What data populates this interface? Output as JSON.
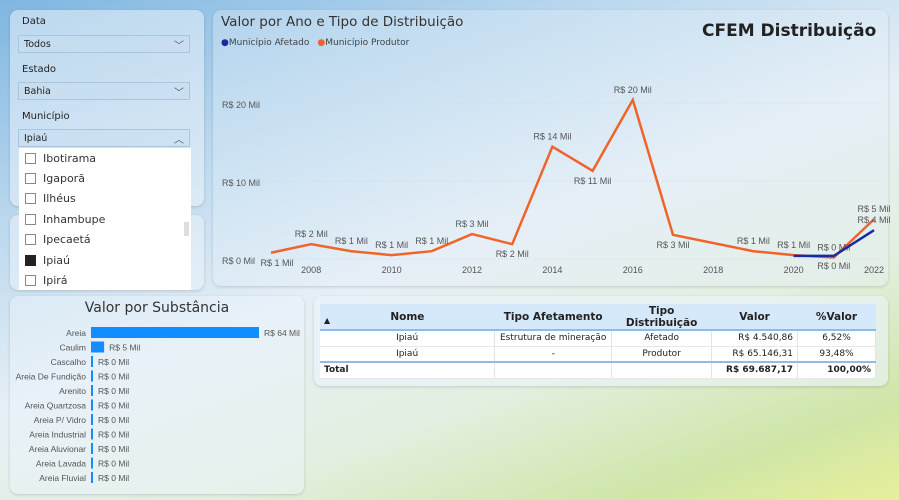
{
  "filters": {
    "data": {
      "label": "Data",
      "value": "Todos"
    },
    "estado": {
      "label": "Estado",
      "value": "Bahia"
    },
    "municipio": {
      "label": "Município",
      "value": "Ipiaú",
      "options": [
        {
          "name": "Ibotirama",
          "checked": false
        },
        {
          "name": "Igaporã",
          "checked": false
        },
        {
          "name": "Ilhéus",
          "checked": false
        },
        {
          "name": "Inhambupe",
          "checked": false
        },
        {
          "name": "Ipecaetá",
          "checked": false
        },
        {
          "name": "Ipiaú",
          "checked": true
        },
        {
          "name": "Ipirá",
          "checked": false
        }
      ]
    }
  },
  "report_title": "CFEM Distribuição",
  "colors": {
    "afetado": "#1a2aa0",
    "produtor": "#f0642a",
    "bar": "#118dff"
  },
  "chart_data": [
    {
      "type": "line",
      "title": "Valor por Ano e Tipo de Distribuição",
      "legend": [
        "Município Afetado",
        "Município Produtor"
      ],
      "legend_position": "top-left",
      "ylim": [
        0,
        20
      ],
      "yticks": [
        {
          "v": 0,
          "t": "R$ 0 Mil"
        },
        {
          "v": 10,
          "t": "R$ 10 Mil"
        },
        {
          "v": 20,
          "t": "R$ 20 Mil"
        }
      ],
      "xticks": [
        2008,
        2010,
        2012,
        2014,
        2016,
        2018,
        2020,
        2022
      ],
      "series": [
        {
          "name": "Município Produtor",
          "points": [
            [
              2007,
              0.8,
              "R$ 1 Mil"
            ],
            [
              2008,
              1.9,
              "R$ 2 Mil"
            ],
            [
              2009,
              1.0,
              "R$ 1 Mil"
            ],
            [
              2010,
              0.5,
              "R$ 1 Mil"
            ],
            [
              2011,
              1.0,
              "R$ 1 Mil"
            ],
            [
              2012,
              3.2,
              "R$ 3 Mil"
            ],
            [
              2013,
              1.9,
              "R$ 2 Mil"
            ],
            [
              2014,
              14.4,
              "R$ 14 Mil"
            ],
            [
              2015,
              11.3,
              "R$ 11 Mil"
            ],
            [
              2016,
              20.4,
              "R$ 20 Mil"
            ],
            [
              2017,
              3.1,
              "R$ 3 Mil"
            ],
            [
              2019,
              1.0,
              "R$ 1 Mil"
            ],
            [
              2020,
              0.5,
              "R$ 1 Mil"
            ],
            [
              2021,
              0.2,
              "R$ 0 Mil"
            ],
            [
              2022,
              5.1,
              "R$ 5 Mil"
            ]
          ]
        },
        {
          "name": "Município Afetado",
          "points": [
            [
              2020,
              0.4,
              ""
            ],
            [
              2021,
              0.4,
              "R$ 0 Mil"
            ],
            [
              2022,
              3.7,
              "R$ 4 Mil"
            ]
          ]
        }
      ]
    },
    {
      "type": "bar",
      "title": "Valor por Substância",
      "orientation": "horizontal",
      "categories": [
        "Areia",
        "Caulim",
        "Cascalho",
        "Areia De Fundição",
        "Arenito",
        "Areia Quartzosa",
        "Areia P/ Vidro",
        "Areia Industrial",
        "Areia Aluvionar",
        "Areia Lavada",
        "Areia Fluvial"
      ],
      "values": [
        64,
        5,
        0.1,
        0.1,
        0.1,
        0.1,
        0.1,
        0.1,
        0.1,
        0.1,
        0.1
      ],
      "labels": [
        "R$ 64 Mil",
        "R$ 5 Mil",
        "R$ 0 Mil",
        "R$ 0 Mil",
        "R$ 0 Mil",
        "R$ 0 Mil",
        "R$ 0 Mil",
        "R$ 0 Mil",
        "R$ 0 Mil",
        "R$ 0 Mil",
        "R$ 0 Mil"
      ]
    }
  ],
  "table": {
    "headers": [
      "Nome",
      "Tipo Afetamento",
      "Tipo Distribuição",
      "Valor",
      "%Valor"
    ],
    "rows": [
      [
        "Ipiaú",
        "Estrutura de mineração",
        "Afetado",
        "R$ 4.540,86",
        "6,52%"
      ],
      [
        "Ipiaú",
        "-",
        "Produtor",
        "R$ 65.146,31",
        "93,48%"
      ]
    ],
    "total": [
      "Total",
      "",
      "",
      "R$ 69.687,17",
      "100,00%"
    ]
  }
}
